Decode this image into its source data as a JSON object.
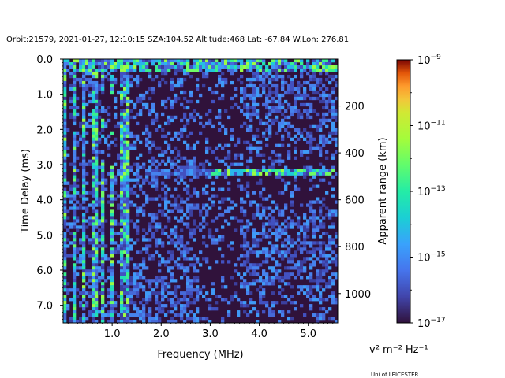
{
  "chart_data": {
    "type": "heatmap",
    "title": "Orbit:21579, 2021-01-27, 12:10:15 SZA:104.52 Altitude:468 Lat: -67.84 W.Lon: 276.81",
    "xlabel": "Frequency (MHz)",
    "ylabel": "Time Delay (ms)",
    "y2label": "Apparent range (km)",
    "xlim": [
      0.0,
      5.6
    ],
    "ylim": [
      7.5,
      0.0
    ],
    "xticks": [
      {
        "value": 1.0,
        "label": "1.0"
      },
      {
        "value": 2.0,
        "label": "2.0"
      },
      {
        "value": 3.0,
        "label": "3.0"
      },
      {
        "value": 4.0,
        "label": "4.0"
      },
      {
        "value": 5.0,
        "label": "5.0"
      }
    ],
    "yticks": [
      {
        "value": 0.0,
        "label": "0.0"
      },
      {
        "value": 1.0,
        "label": "1.0"
      },
      {
        "value": 2.0,
        "label": "2.0"
      },
      {
        "value": 3.0,
        "label": "3.0"
      },
      {
        "value": 4.0,
        "label": "4.0"
      },
      {
        "value": 5.0,
        "label": "5.0"
      },
      {
        "value": 6.0,
        "label": "6.0"
      },
      {
        "value": 7.0,
        "label": "7.0"
      }
    ],
    "y2ticks": [
      {
        "value": 200,
        "label": "200"
      },
      {
        "value": 400,
        "label": "400"
      },
      {
        "value": 600,
        "label": "600"
      },
      {
        "value": 800,
        "label": "800"
      },
      {
        "value": 1000,
        "label": "1000"
      }
    ],
    "y2lim_km": [
      0,
      1125
    ],
    "colorbar": {
      "label": "v² m⁻² Hz⁻¹",
      "scale": "log",
      "range": [
        1e-17,
        1e-09
      ],
      "ticks": [
        {
          "value": 1e-09,
          "base": "10",
          "exp": "−9"
        },
        {
          "value": 1e-11,
          "base": "10",
          "exp": "−11"
        },
        {
          "value": 1e-13,
          "base": "10",
          "exp": "−13"
        },
        {
          "value": 1e-15,
          "base": "10",
          "exp": "−15"
        },
        {
          "value": 1e-17,
          "base": "10",
          "exp": "−17"
        }
      ],
      "colormap": "turbo"
    },
    "features": [
      {
        "desc": "surface reflection trace",
        "time_delay_ms": 3.2,
        "freq_range_mhz": [
          1.7,
          5.6
        ]
      },
      {
        "desc": "strong near-zero-delay signal",
        "time_delay_ms": 0.2,
        "freq_range_mhz": [
          0.0,
          5.6
        ]
      },
      {
        "desc": "low-frequency vertical bands",
        "freq_range_mhz": [
          0.0,
          1.4
        ]
      }
    ]
  },
  "credit": "Uni of LEICESTER"
}
